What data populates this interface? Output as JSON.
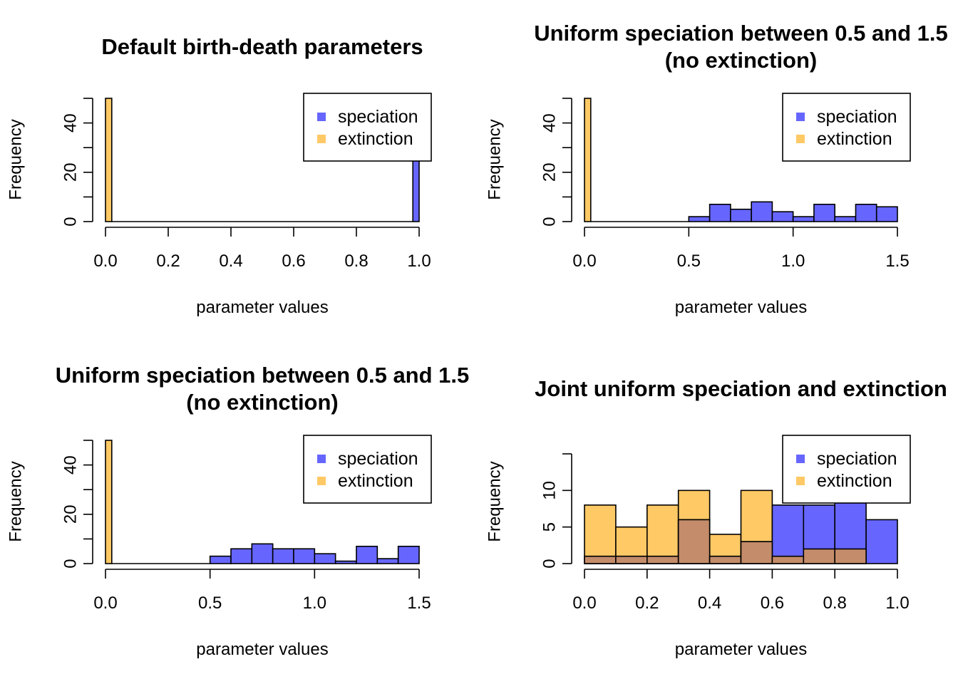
{
  "colors": {
    "speciation": "#6666ff",
    "extinction": "#ffc966",
    "overlap": "#c48c6a"
  },
  "chart_data": [
    {
      "type": "histogram",
      "title_lines": [
        "Default birth-death parameters"
      ],
      "xlabel": "parameter values",
      "ylabel": "Frequency",
      "xlim": [
        0,
        1
      ],
      "ylim": [
        0,
        50
      ],
      "xticks": [
        "0.0",
        "0.2",
        "0.4",
        "0.6",
        "0.8",
        "1.0"
      ],
      "xtick_values": [
        0,
        0.2,
        0.4,
        0.6,
        0.8,
        1.0
      ],
      "yticks": [
        "0",
        "20",
        "40"
      ],
      "ytick_values": [
        0,
        20,
        40
      ],
      "yminor_ticks": [
        10,
        30,
        50
      ],
      "legend": {
        "position": "top-right",
        "entries": [
          "speciation",
          "extinction"
        ]
      },
      "series": [
        {
          "key": "extinction",
          "bins": [
            [
              0,
              0.02,
              50
            ],
            [
              0.02,
              0.98,
              0
            ]
          ]
        },
        {
          "key": "speciation",
          "bins": [
            [
              0.98,
              1.0,
              50
            ]
          ]
        }
      ]
    },
    {
      "type": "histogram",
      "title_lines": [
        "Uniform speciation between 0.5 and 1.5",
        "(no extinction)"
      ],
      "xlabel": "parameter values",
      "ylabel": "Frequency",
      "xlim": [
        0,
        1.5
      ],
      "ylim": [
        0,
        50
      ],
      "xticks": [
        "0.0",
        "0.5",
        "1.0",
        "1.5"
      ],
      "xtick_values": [
        0,
        0.5,
        1.0,
        1.5
      ],
      "yticks": [
        "0",
        "20",
        "40"
      ],
      "ytick_values": [
        0,
        20,
        40
      ],
      "yminor_ticks": [
        10,
        30,
        50
      ],
      "legend": {
        "position": "top-right",
        "entries": [
          "speciation",
          "extinction"
        ]
      },
      "series": [
        {
          "key": "extinction",
          "bins": [
            [
              0,
              0.03,
              50
            ],
            [
              0.03,
              0.5,
              0
            ]
          ]
        },
        {
          "key": "speciation",
          "bins": [
            [
              0.5,
              0.6,
              2
            ],
            [
              0.6,
              0.7,
              7
            ],
            [
              0.7,
              0.8,
              5
            ],
            [
              0.8,
              0.9,
              8
            ],
            [
              0.9,
              1.0,
              4
            ],
            [
              1.0,
              1.1,
              2
            ],
            [
              1.1,
              1.2,
              7
            ],
            [
              1.2,
              1.3,
              2
            ],
            [
              1.3,
              1.4,
              7
            ],
            [
              1.4,
              1.5,
              6
            ]
          ]
        }
      ]
    },
    {
      "type": "histogram",
      "title_lines": [
        "Uniform speciation between 0.5 and 1.5",
        "(no extinction)"
      ],
      "xlabel": "parameter values",
      "ylabel": "Frequency",
      "xlim": [
        0,
        1.5
      ],
      "ylim": [
        0,
        50
      ],
      "xticks": [
        "0.0",
        "0.5",
        "1.0",
        "1.5"
      ],
      "xtick_values": [
        0,
        0.5,
        1.0,
        1.5
      ],
      "yticks": [
        "0",
        "20",
        "40"
      ],
      "ytick_values": [
        0,
        20,
        40
      ],
      "yminor_ticks": [
        10,
        30,
        50
      ],
      "legend": {
        "position": "top-right",
        "entries": [
          "speciation",
          "extinction"
        ]
      },
      "series": [
        {
          "key": "extinction",
          "bins": [
            [
              0,
              0.03,
              50
            ],
            [
              0.03,
              0.5,
              0
            ]
          ]
        },
        {
          "key": "speciation",
          "bins": [
            [
              0.5,
              0.6,
              3
            ],
            [
              0.6,
              0.7,
              6
            ],
            [
              0.7,
              0.8,
              8
            ],
            [
              0.8,
              0.9,
              6
            ],
            [
              0.9,
              1.0,
              6
            ],
            [
              1.0,
              1.1,
              4
            ],
            [
              1.1,
              1.2,
              1
            ],
            [
              1.2,
              1.3,
              7
            ],
            [
              1.3,
              1.4,
              2
            ],
            [
              1.4,
              1.5,
              7
            ]
          ]
        }
      ]
    },
    {
      "type": "histogram",
      "title_lines": [
        "Joint uniform speciation and extinction"
      ],
      "xlabel": "parameter values",
      "ylabel": "Frequency",
      "xlim": [
        0,
        1
      ],
      "ylim": [
        0,
        15
      ],
      "xticks": [
        "0.0",
        "0.2",
        "0.4",
        "0.6",
        "0.8",
        "1.0"
      ],
      "xtick_values": [
        0,
        0.2,
        0.4,
        0.6,
        0.8,
        1.0
      ],
      "yticks": [
        "0",
        "5",
        "10"
      ],
      "ytick_values": [
        0,
        5,
        10
      ],
      "yminor_ticks": [
        15
      ],
      "legend": {
        "position": "top-right",
        "entries": [
          "speciation",
          "extinction"
        ]
      },
      "series": [
        {
          "key": "extinction",
          "bins": [
            [
              0.0,
              0.1,
              8
            ],
            [
              0.1,
              0.2,
              5
            ],
            [
              0.2,
              0.3,
              8
            ],
            [
              0.3,
              0.4,
              10
            ],
            [
              0.4,
              0.5,
              4
            ],
            [
              0.5,
              0.6,
              10
            ]
          ]
        },
        {
          "key": "speciation",
          "bins": [
            [
              0.0,
              0.1,
              1
            ],
            [
              0.1,
              0.2,
              1
            ],
            [
              0.2,
              0.3,
              1
            ],
            [
              0.3,
              0.4,
              6
            ],
            [
              0.4,
              0.5,
              1
            ],
            [
              0.5,
              0.6,
              3
            ],
            [
              0.6,
              0.7,
              8
            ],
            [
              0.7,
              0.8,
              8
            ],
            [
              0.8,
              0.9,
              9
            ],
            [
              0.9,
              1.0,
              6
            ]
          ]
        },
        {
          "key": "overlap",
          "bins": [
            [
              0.0,
              0.1,
              1
            ],
            [
              0.1,
              0.2,
              1
            ],
            [
              0.2,
              0.3,
              1
            ],
            [
              0.3,
              0.4,
              6
            ],
            [
              0.4,
              0.5,
              1
            ],
            [
              0.5,
              0.6,
              3
            ],
            [
              0.6,
              0.7,
              1
            ],
            [
              0.7,
              0.8,
              2
            ],
            [
              0.8,
              0.9,
              2
            ]
          ]
        }
      ]
    }
  ]
}
